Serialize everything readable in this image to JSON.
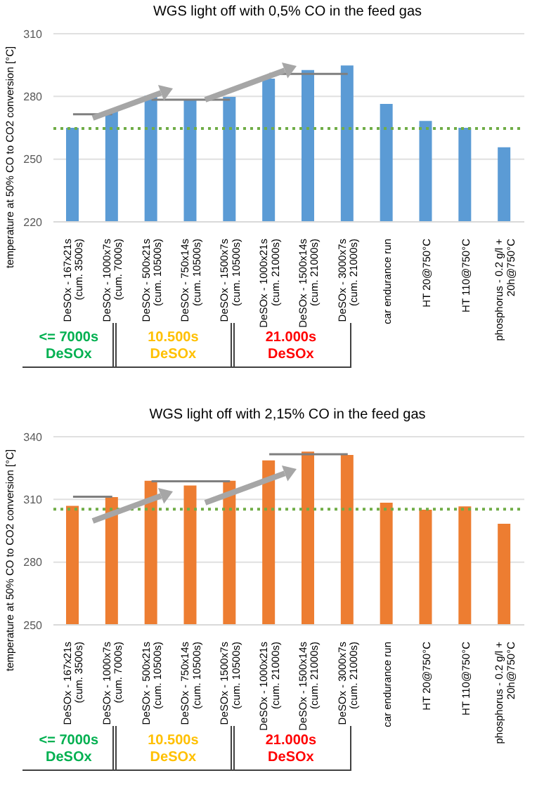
{
  "chart_data": [
    {
      "type": "bar",
      "title": "WGS light off with 0,5% CO  in the feed gas",
      "ylabel": "temperature at 50% CO to CO2 conversion [°C]",
      "categories": [
        "DeSOx - 167x21s (cum. 3500s)",
        "DeSOx - 1000x7s (cum. 7000s)",
        "DeSOx - 500x21s (cum. 10500s)",
        "DeSOx - 750x14s (cum. 10500s)",
        "DeSOx - 1500x7s (cum. 10500s)",
        "DeSOx - 1000x21s (cum. 21000s)",
        "DeSOx - 1500x14s (cum. 21000s)",
        "DeSOx - 3000x7s (cum. 21000s)",
        "car endurance run",
        "HT 20@750°C",
        "HT 110@750°C",
        "phosphorus - 0.2 g/l + 20h@750°C"
      ],
      "series": [
        {
          "color": "#5b9bd5",
          "values": [
            265,
            273.3,
            280.4,
            278.7,
            279.8,
            288.5,
            292.6,
            294.8,
            276.4,
            268.3,
            265,
            255.7
          ]
        },
        {
          "type": "line",
          "color": "#7f7f7f",
          "values": [
            271.5,
            271.5,
            null,
            null,
            null,
            null,
            null,
            null,
            null,
            null,
            null,
            null
          ]
        },
        {
          "type": "line",
          "color": "#7f7f7f",
          "values": [
            null,
            null,
            278.4,
            278.4,
            278.4,
            null,
            null,
            null,
            null,
            null,
            null,
            null
          ]
        },
        {
          "type": "line",
          "color": "#7f7f7f",
          "values": [
            null,
            null,
            null,
            null,
            null,
            290.8,
            290.8,
            290.8,
            null,
            null,
            null,
            null
          ]
        }
      ],
      "ylim": [
        220,
        310
      ],
      "yticks": [
        220,
        250,
        280,
        310
      ],
      "grid": "y",
      "legend": false,
      "marker": "none",
      "line_style": "solid",
      "ref_lines": [
        {
          "axis": "y",
          "value": 264.7,
          "color": "#70ad47",
          "line_style": "dotted"
        }
      ],
      "annotations": [
        "<= 7000s DeSOx",
        "10.500s DeSOx",
        "21.000s DeSOx"
      ]
    },
    {
      "type": "bar",
      "title": "WGS light off with 2,15% CO  in the feed gas",
      "ylabel": "temperature at 50% CO to CO2 conversion [°C]",
      "categories": [
        "DeSOx - 167x21s (cum. 3500s)",
        "DeSOx - 1000x7s (cum. 7000s)",
        "DeSOx - 500x21s (cum. 10500s)",
        "DeSOx - 750x14s (cum. 10500s)",
        "DeSOx - 1500x7s (cum. 10500s)",
        "DeSOx - 1000x21s (cum. 21000s)",
        "DeSOx - 1500x14s (cum. 21000s)",
        "DeSOx - 3000x7s (cum. 21000s)",
        "car endurance run",
        "HT 20@750°C",
        "HT 110@750°C",
        "phosphorus - 0.2 g/l + 20h@750°C"
      ],
      "series": [
        {
          "color": "#ed7d31",
          "values": [
            306.9,
            311.1,
            318.9,
            316.7,
            318.9,
            328.7,
            332.9,
            331.3,
            308.4,
            305.1,
            306.7,
            298.4
          ]
        },
        {
          "type": "line",
          "color": "#7f7f7f",
          "values": [
            311.3,
            311.3,
            null,
            null,
            null,
            null,
            null,
            null,
            null,
            null,
            null,
            null
          ]
        },
        {
          "type": "line",
          "color": "#7f7f7f",
          "values": [
            null,
            null,
            318.7,
            318.7,
            318.7,
            null,
            null,
            null,
            null,
            null,
            null,
            null
          ]
        },
        {
          "type": "line",
          "color": "#7f7f7f",
          "values": [
            null,
            null,
            null,
            null,
            null,
            331.6,
            331.6,
            331.6,
            null,
            null,
            null,
            null
          ]
        }
      ],
      "ylim": [
        250,
        340
      ],
      "yticks": [
        250,
        280,
        310,
        340
      ],
      "grid": "y",
      "legend": false,
      "marker": "none",
      "line_style": "solid",
      "ref_lines": [
        {
          "axis": "y",
          "value": 305.3,
          "color": "#70ad47",
          "line_style": "dotted"
        }
      ],
      "annotations": [
        "<= 7000s DeSOx",
        "10.500s DeSOx",
        "21.000s DeSOx"
      ]
    }
  ]
}
